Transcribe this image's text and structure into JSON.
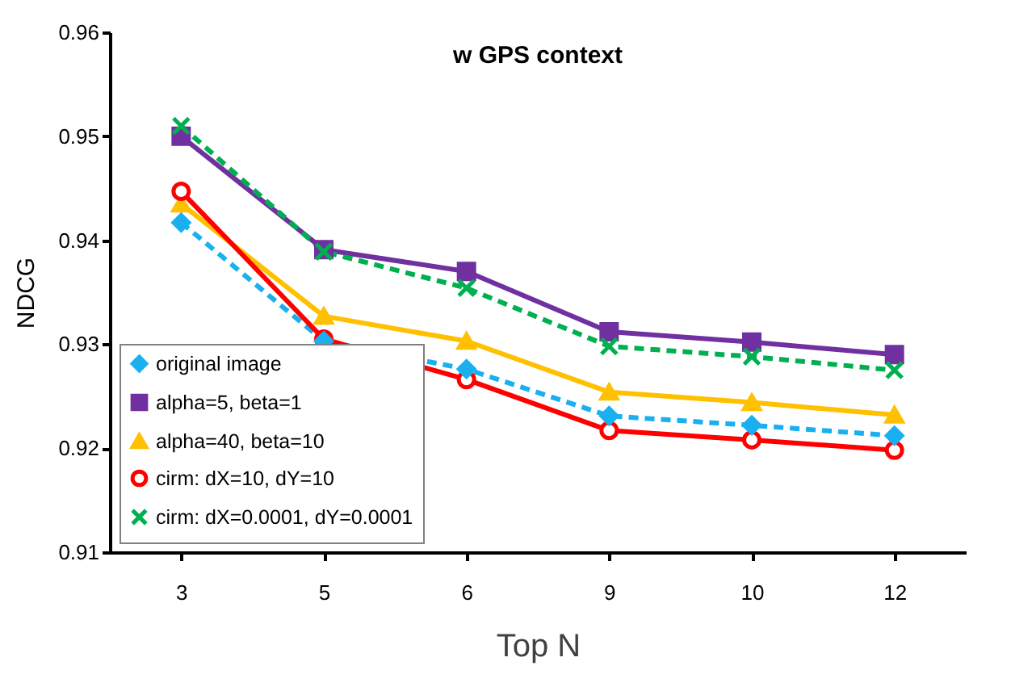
{
  "chart_data": {
    "type": "line",
    "title": "w GPS context",
    "xlabel": "Top N",
    "ylabel": "NDCG",
    "categories": [
      "3",
      "5",
      "6",
      "9",
      "10",
      "12"
    ],
    "ylim": [
      0.91,
      0.96
    ],
    "yticks": [
      0.91,
      0.92,
      0.93,
      0.94,
      0.95,
      0.96
    ],
    "grid": false,
    "legend": "bottom left",
    "series": [
      {
        "name": "original image",
        "color": "#1ab0f0",
        "marker": "diamond",
        "line_style": "dashed",
        "values": [
          0.9417,
          0.9303,
          0.9276,
          0.9231,
          0.9222,
          0.9212
        ]
      },
      {
        "name": "alpha=5, beta=1",
        "color": "#7030a0",
        "marker": "square",
        "line_style": "solid",
        "values": [
          0.95,
          0.9391,
          0.937,
          0.9312,
          0.9302,
          0.929
        ]
      },
      {
        "name": "alpha=40, beta=10",
        "color": "#ffc000",
        "marker": "triangle",
        "line_style": "solid",
        "values": [
          0.9435,
          0.9327,
          0.9303,
          0.9254,
          0.9244,
          0.9232
        ]
      },
      {
        "name": "cirm: dX=10, dY=10",
        "color": "#ff0000",
        "marker": "circle",
        "line_style": "solid",
        "values": [
          0.9447,
          0.9305,
          0.9266,
          0.9217,
          0.9208,
          0.9198
        ]
      },
      {
        "name": "cirm: dX=0.0001, dY=0.0001",
        "color": "#00b050",
        "marker": "cross",
        "line_style": "dashed",
        "values": [
          0.951,
          0.9389,
          0.9354,
          0.9298,
          0.9288,
          0.9275
        ]
      }
    ]
  }
}
